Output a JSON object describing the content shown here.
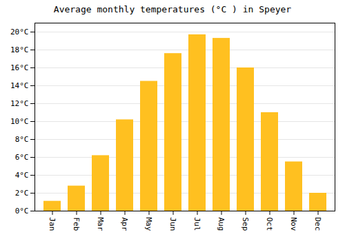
{
  "chart_data": {
    "type": "bar",
    "title": "Average monthly temperatures (°C ) in Speyer",
    "categories": [
      "Jan",
      "Feb",
      "Mar",
      "Apr",
      "May",
      "Jun",
      "Jul",
      "Aug",
      "Sep",
      "Oct",
      "Nov",
      "Dec"
    ],
    "values": [
      1.1,
      2.8,
      6.2,
      10.2,
      14.5,
      17.6,
      19.7,
      19.3,
      16.0,
      11.0,
      5.5,
      2.0
    ],
    "color": "#FFC020",
    "ylim": [
      0,
      21
    ],
    "yticks": [
      {
        "value": 0,
        "label": "0°C"
      },
      {
        "value": 2,
        "label": "2°C"
      },
      {
        "value": 4,
        "label": "4°C"
      },
      {
        "value": 6,
        "label": "6°C"
      },
      {
        "value": 8,
        "label": "8°C"
      },
      {
        "value": 10,
        "label": "10°C"
      },
      {
        "value": 12,
        "label": "12°C"
      },
      {
        "value": 14,
        "label": "14°C"
      },
      {
        "value": 16,
        "label": "16°C"
      },
      {
        "value": 18,
        "label": "18°C"
      },
      {
        "value": 20,
        "label": "20°C"
      }
    ],
    "grid": true
  }
}
